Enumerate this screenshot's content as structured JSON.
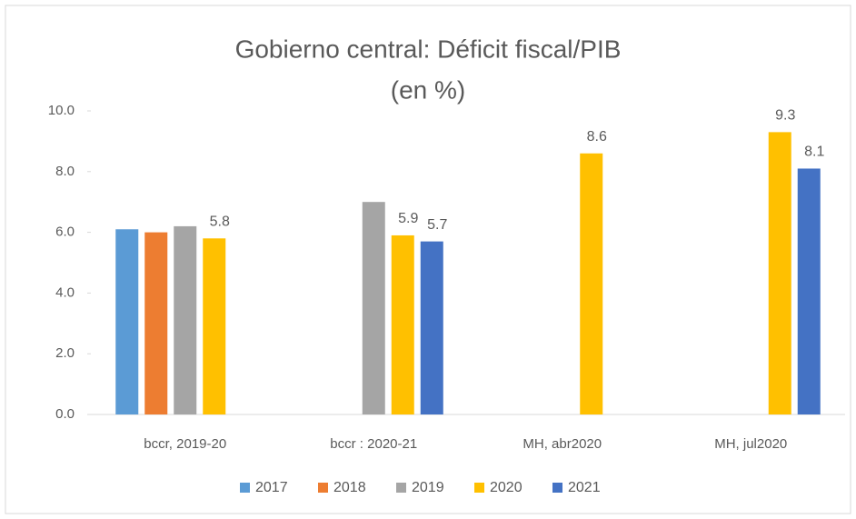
{
  "chart_data": {
    "type": "bar",
    "title": "Gobierno central: Déficit fiscal/PIB",
    "subtitle": "(en %)",
    "categories": [
      "bccr, 2019-20",
      "bccr : 2020-21",
      "MH, abr2020",
      "MH, jul2020"
    ],
    "series": [
      {
        "name": "2017",
        "color": "#5b9bd5",
        "values": [
          6.1,
          null,
          null,
          null
        ],
        "value_labels": [
          null,
          null,
          null,
          null
        ]
      },
      {
        "name": "2018",
        "color": "#ed7d31",
        "values": [
          6.0,
          null,
          null,
          null
        ],
        "value_labels": [
          null,
          null,
          null,
          null
        ]
      },
      {
        "name": "2019",
        "color": "#a5a5a5",
        "values": [
          6.2,
          7.0,
          null,
          null
        ],
        "value_labels": [
          null,
          null,
          null,
          null
        ]
      },
      {
        "name": "2020",
        "color": "#ffc000",
        "values": [
          5.8,
          5.9,
          8.6,
          9.3
        ],
        "value_labels": [
          "5.8",
          "5.9",
          "8.6",
          "9.3"
        ]
      },
      {
        "name": "2021",
        "color": "#4472c4",
        "values": [
          null,
          5.7,
          null,
          8.1
        ],
        "value_labels": [
          null,
          "5.7",
          null,
          "8.1"
        ]
      }
    ],
    "ylim": [
      0,
      10
    ],
    "yticks": [
      {
        "value": 0,
        "label": "0.0"
      },
      {
        "value": 2,
        "label": "2.0"
      },
      {
        "value": 4,
        "label": "4.0"
      },
      {
        "value": 6,
        "label": "6.0"
      },
      {
        "value": 8,
        "label": "8.0"
      },
      {
        "value": 10,
        "label": "10.0"
      }
    ],
    "grid": false,
    "legend": "bottom"
  }
}
